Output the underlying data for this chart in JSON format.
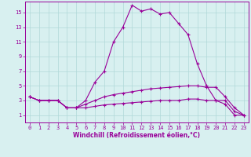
{
  "xlabel": "Windchill (Refroidissement éolien,°C)",
  "bg_color": "#d8f0f0",
  "line_color": "#990099",
  "grid_color": "#b0d8d8",
  "xlim": [
    -0.5,
    23.5
  ],
  "ylim": [
    0,
    16.5
  ],
  "xticks": [
    0,
    1,
    2,
    3,
    4,
    5,
    6,
    7,
    8,
    9,
    10,
    11,
    12,
    13,
    14,
    15,
    16,
    17,
    18,
    19,
    20,
    21,
    22,
    23
  ],
  "yticks": [
    1,
    3,
    5,
    7,
    9,
    11,
    13,
    15
  ],
  "series": [
    {
      "x": [
        0,
        1,
        2,
        3,
        4,
        5,
        6,
        7,
        8,
        9,
        10,
        11,
        12,
        13,
        14,
        15,
        16,
        17,
        18,
        19,
        20,
        21,
        22,
        23
      ],
      "y": [
        3.5,
        3.0,
        3.0,
        3.0,
        2.0,
        2.0,
        3.0,
        5.5,
        7.0,
        11.0,
        13.0,
        16.0,
        15.2,
        15.5,
        14.8,
        15.0,
        13.5,
        12.0,
        8.0,
        5.0,
        3.0,
        2.5,
        1.0,
        1.0
      ]
    },
    {
      "x": [
        0,
        1,
        2,
        3,
        4,
        5,
        6,
        7,
        8,
        9,
        10,
        11,
        12,
        13,
        14,
        15,
        16,
        17,
        18,
        19,
        20,
        21,
        22,
        23
      ],
      "y": [
        3.5,
        3.0,
        3.0,
        3.0,
        2.0,
        2.0,
        2.5,
        3.0,
        3.5,
        3.8,
        4.0,
        4.2,
        4.4,
        4.6,
        4.7,
        4.8,
        4.9,
        5.0,
        5.0,
        4.8,
        4.8,
        3.5,
        2.0,
        1.0
      ]
    },
    {
      "x": [
        0,
        1,
        2,
        3,
        4,
        5,
        6,
        7,
        8,
        9,
        10,
        11,
        12,
        13,
        14,
        15,
        16,
        17,
        18,
        19,
        20,
        21,
        22,
        23
      ],
      "y": [
        3.5,
        3.0,
        3.0,
        3.0,
        2.0,
        2.0,
        2.0,
        2.2,
        2.4,
        2.5,
        2.6,
        2.7,
        2.8,
        2.9,
        3.0,
        3.0,
        3.0,
        3.2,
        3.2,
        3.0,
        3.0,
        3.0,
        1.5,
        1.0
      ]
    }
  ]
}
